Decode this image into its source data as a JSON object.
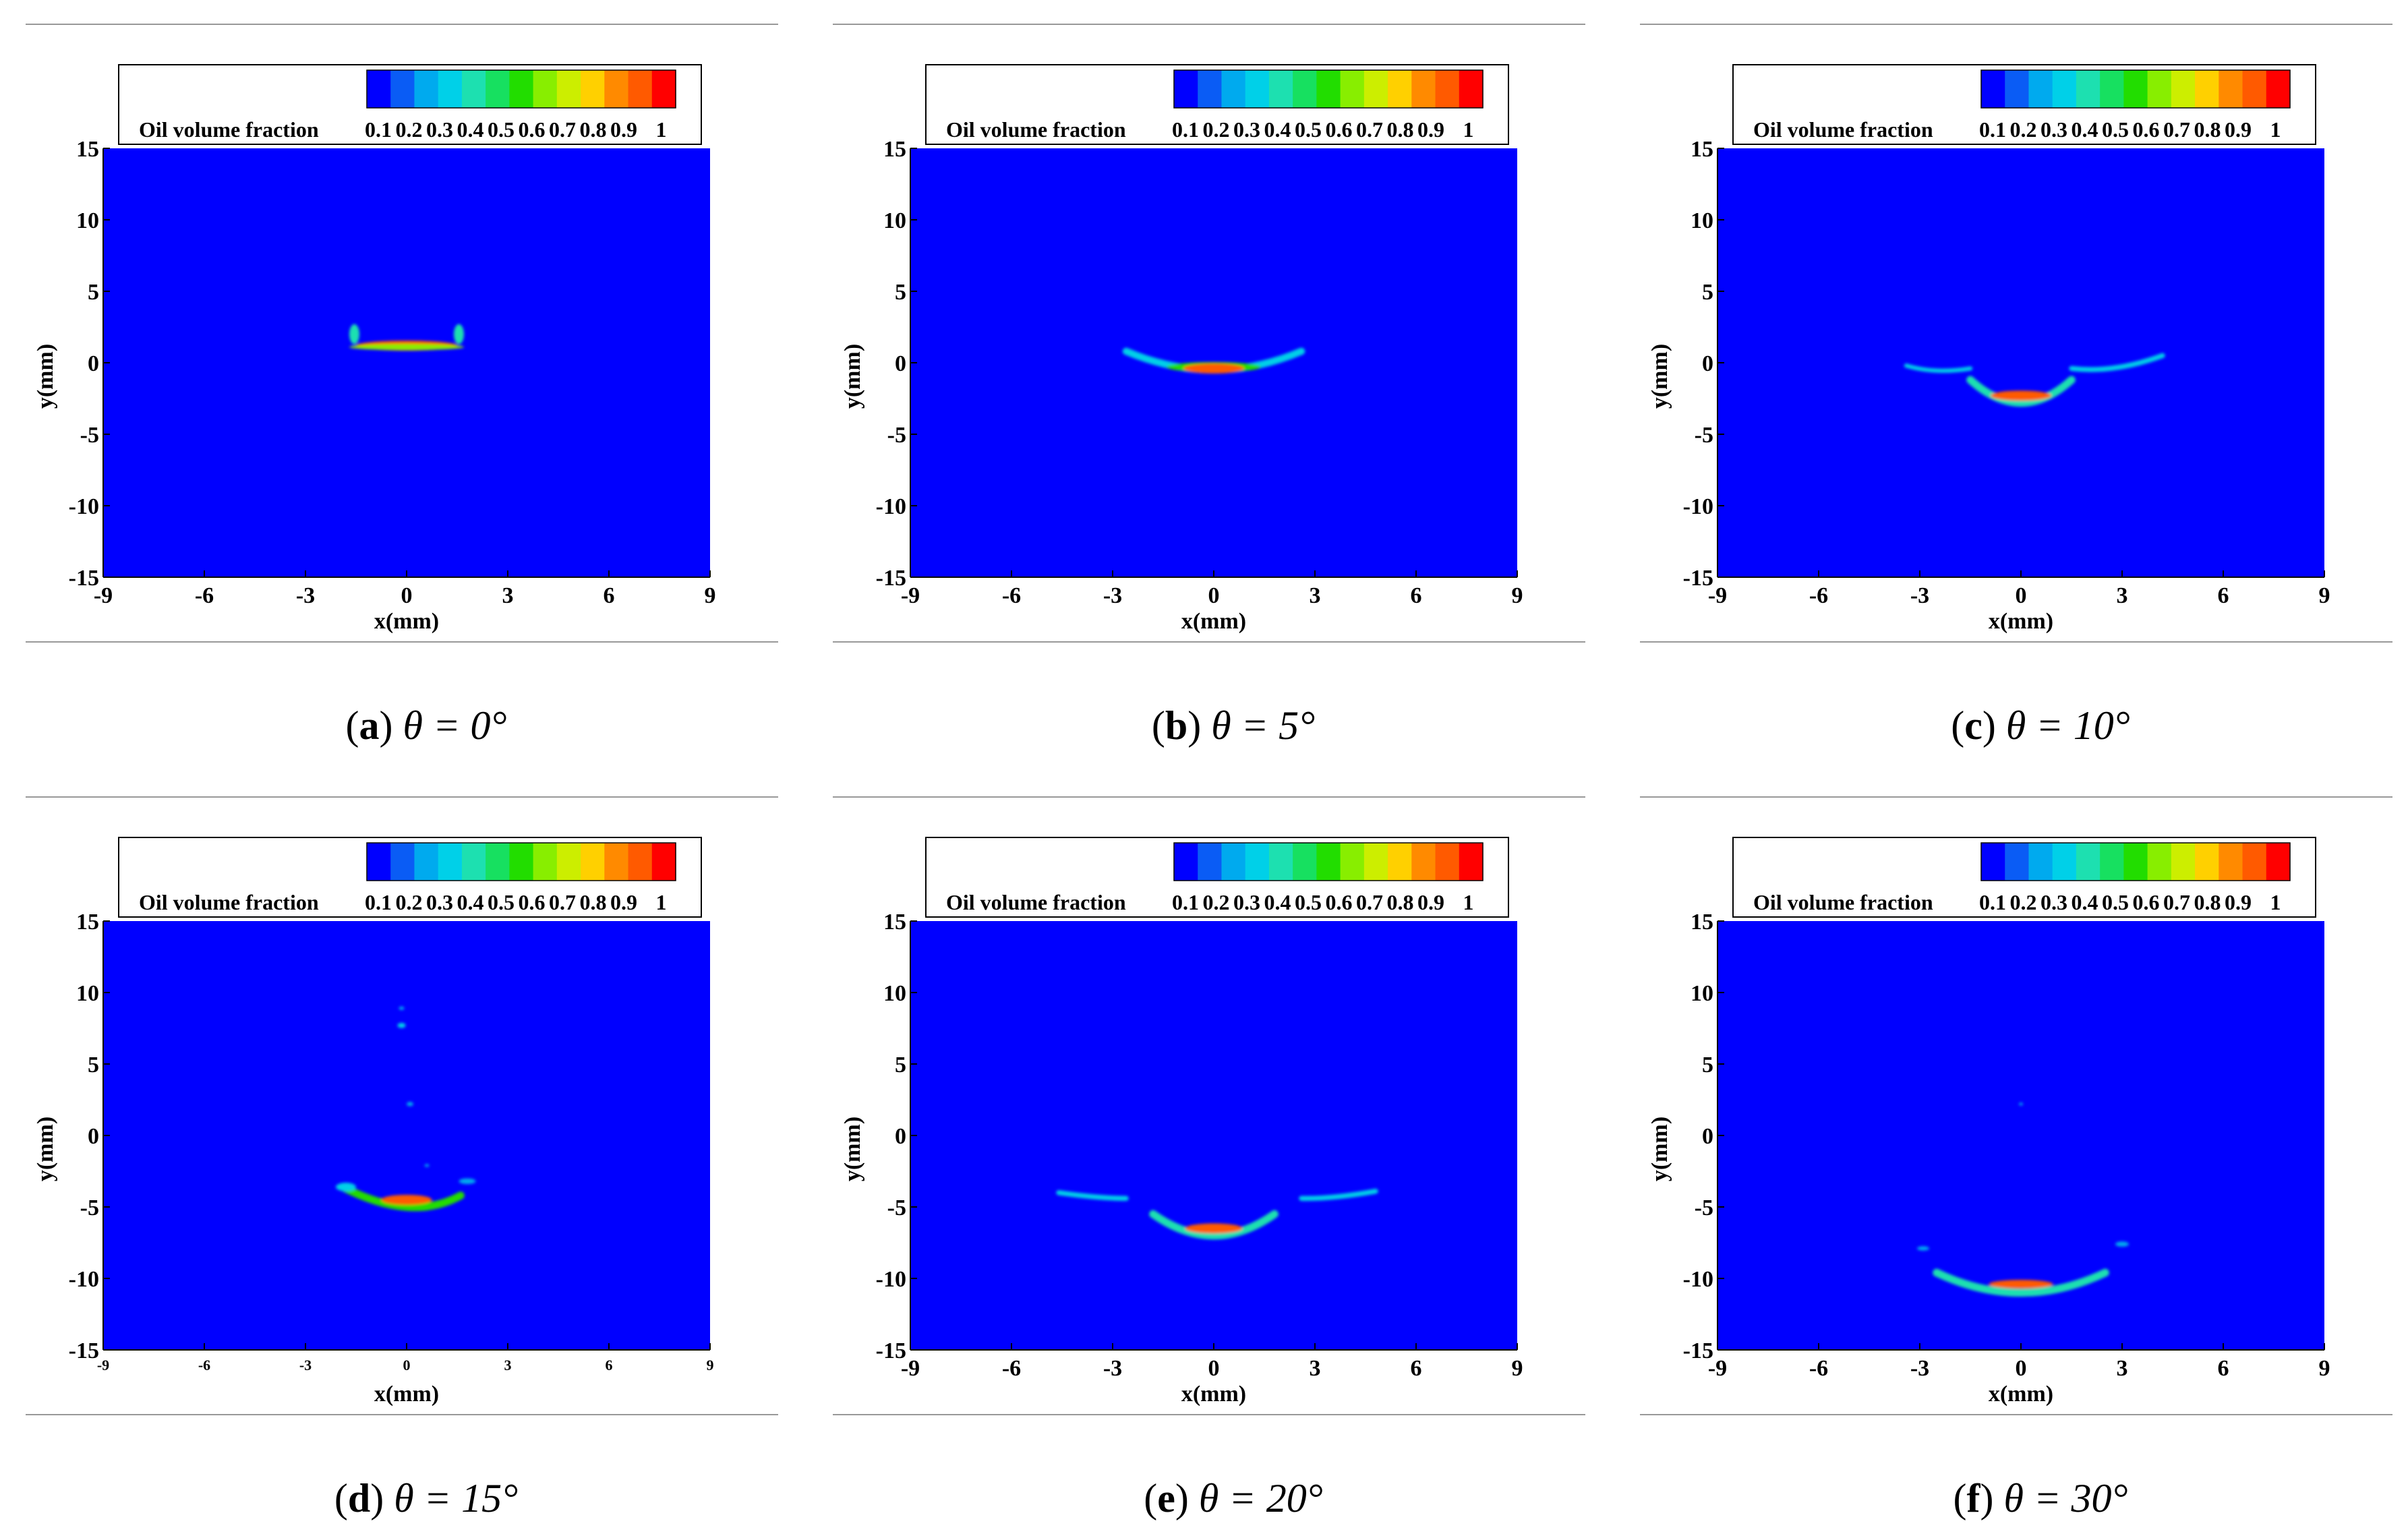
{
  "figure": {
    "colormap": [
      "#0000ff",
      "#0a5cf5",
      "#00aaee",
      "#00d0e8",
      "#1de0b0",
      "#17e060",
      "#22dd00",
      "#88ee00",
      "#ccee00",
      "#ffd000",
      "#ff8a00",
      "#ff5a00",
      "#ff0000"
    ],
    "legend_title": "Oil volume fraction",
    "legend_ticks": [
      "0.1",
      "0.2",
      "0.3",
      "0.4",
      "0.5",
      "0.6",
      "0.7",
      "0.8",
      "0.9",
      "1"
    ],
    "background_color": "#0000ff"
  },
  "chart_data": [
    {
      "type": "heatmap",
      "panel_letter": "a",
      "caption_rest": "θ = 0°",
      "xlabel": "x(mm)",
      "ylabel": "y(mm)",
      "xlim": [
        -9,
        9
      ],
      "ylim": [
        -15,
        15
      ],
      "xticks": [
        "-9",
        "-6",
        "-3",
        "0",
        "3",
        "6",
        "9"
      ],
      "yticks": [
        "15",
        "10",
        "5",
        "0",
        "-5",
        "-10",
        "-15"
      ],
      "small_xticks": false,
      "features": [
        {
          "shape": "band",
          "x": 0,
          "y": 1.2,
          "rx": 1.5,
          "ry": 0.35,
          "color": "#ff5a00"
        },
        {
          "shape": "band",
          "x": 0,
          "y": 1.1,
          "rx": 1.7,
          "ry": 0.22,
          "color": "#88ee00"
        },
        {
          "shape": "blob",
          "x": -1.55,
          "y": 2.0,
          "rx": 0.15,
          "ry": 0.7,
          "color": "#1de0b0"
        },
        {
          "shape": "blob",
          "x": 1.55,
          "y": 2.0,
          "rx": 0.15,
          "ry": 0.7,
          "color": "#1de0b0"
        }
      ]
    },
    {
      "type": "heatmap",
      "panel_letter": "b",
      "caption_rest": "θ = 5°",
      "xlabel": "x(mm)",
      "ylabel": "y(mm)",
      "xlim": [
        -9,
        9
      ],
      "ylim": [
        -15,
        15
      ],
      "xticks": [
        "-9",
        "-6",
        "-3",
        "0",
        "3",
        "6",
        "9"
      ],
      "yticks": [
        "15",
        "10",
        "5",
        "0",
        "-5",
        "-10",
        "-15"
      ],
      "small_xticks": false,
      "features": [
        {
          "shape": "arc",
          "x1": -2.6,
          "y1": 0.8,
          "xm": 0,
          "ym": -0.5,
          "x2": 2.6,
          "y2": 0.8,
          "w": 0.5,
          "color": "#00d0e8"
        },
        {
          "shape": "blob",
          "x": 0,
          "y": -0.3,
          "rx": 1.4,
          "ry": 0.35,
          "color": "#22dd00"
        },
        {
          "shape": "blob",
          "x": 0,
          "y": -0.4,
          "rx": 0.9,
          "ry": 0.35,
          "color": "#ff5a00"
        }
      ]
    },
    {
      "type": "heatmap",
      "panel_letter": "c",
      "caption_rest": "θ = 10°",
      "xlabel": "x(mm)",
      "ylabel": "y(mm)",
      "xlim": [
        -9,
        9
      ],
      "ylim": [
        -15,
        15
      ],
      "xticks": [
        "-9",
        "-6",
        "-3",
        "0",
        "3",
        "6",
        "9"
      ],
      "yticks": [
        "15",
        "10",
        "5",
        "0",
        "-5",
        "-10",
        "-15"
      ],
      "small_xticks": false,
      "features": [
        {
          "shape": "arc",
          "x1": -3.4,
          "y1": -0.2,
          "xm": -2.5,
          "ym": -0.55,
          "x2": -1.5,
          "y2": -0.4,
          "w": 0.3,
          "color": "#00d0e8"
        },
        {
          "shape": "arc",
          "x1": 1.5,
          "y1": -0.4,
          "xm": 2.8,
          "ym": -0.35,
          "x2": 4.2,
          "y2": 0.5,
          "w": 0.35,
          "color": "#00d0e8"
        },
        {
          "shape": "arc",
          "x1": -1.5,
          "y1": -1.2,
          "xm": 0,
          "ym": -2.8,
          "x2": 1.5,
          "y2": -1.2,
          "w": 0.55,
          "color": "#1de0b0"
        },
        {
          "shape": "blob",
          "x": 0,
          "y": -2.3,
          "rx": 0.9,
          "ry": 0.35,
          "color": "#ff5a00"
        }
      ]
    },
    {
      "type": "heatmap",
      "panel_letter": "d",
      "caption_rest": "θ = 15°",
      "xlabel": "x(mm)",
      "ylabel": "y(mm)",
      "xlim": [
        -9,
        9
      ],
      "ylim": [
        -15,
        15
      ],
      "xticks": [
        "-9",
        "-6",
        "-3",
        "0",
        "3",
        "6",
        "9"
      ],
      "yticks": [
        "15",
        "10",
        "5",
        "0",
        "-5",
        "-10",
        "-15"
      ],
      "small_xticks": true,
      "features": [
        {
          "shape": "arc",
          "x1": -1.9,
          "y1": -3.6,
          "xm": 0,
          "ym": -5.0,
          "x2": 1.6,
          "y2": -4.2,
          "w": 0.55,
          "color": "#22dd00"
        },
        {
          "shape": "blob",
          "x": 0,
          "y": -4.5,
          "rx": 0.75,
          "ry": 0.35,
          "color": "#ff5a00"
        },
        {
          "shape": "blob",
          "x": -1.8,
          "y": -3.6,
          "rx": 0.3,
          "ry": 0.3,
          "color": "#00d0e8"
        },
        {
          "shape": "blob",
          "x": 1.8,
          "y": -3.2,
          "rx": 0.25,
          "ry": 0.2,
          "color": "#00aaee"
        },
        {
          "shape": "blob",
          "x": -0.15,
          "y": 7.7,
          "rx": 0.12,
          "ry": 0.18,
          "color": "#00d0e8"
        },
        {
          "shape": "blob",
          "x": -0.15,
          "y": 8.9,
          "rx": 0.08,
          "ry": 0.12,
          "color": "#00aaee"
        },
        {
          "shape": "blob",
          "x": 0.1,
          "y": 2.2,
          "rx": 0.1,
          "ry": 0.15,
          "color": "#00aaee"
        },
        {
          "shape": "blob",
          "x": 0.6,
          "y": -2.1,
          "rx": 0.07,
          "ry": 0.1,
          "color": "#00aaee"
        }
      ]
    },
    {
      "type": "heatmap",
      "panel_letter": "e",
      "caption_rest": "θ = 20°",
      "xlabel": "x(mm)",
      "ylabel": "y(mm)",
      "xlim": [
        -9,
        9
      ],
      "ylim": [
        -15,
        15
      ],
      "xticks": [
        "-9",
        "-6",
        "-3",
        "0",
        "3",
        "6",
        "9"
      ],
      "yticks": [
        "15",
        "10",
        "5",
        "0",
        "-5",
        "-10",
        "-15"
      ],
      "small_xticks": false,
      "features": [
        {
          "shape": "arc",
          "x1": -4.6,
          "y1": -4.0,
          "xm": -3.5,
          "ym": -4.3,
          "x2": -2.6,
          "y2": -4.4,
          "w": 0.35,
          "color": "#00d0e8"
        },
        {
          "shape": "arc",
          "x1": 2.6,
          "y1": -4.4,
          "xm": 3.6,
          "ym": -4.3,
          "x2": 4.8,
          "y2": -3.9,
          "w": 0.35,
          "color": "#00d0e8"
        },
        {
          "shape": "arc",
          "x1": -1.8,
          "y1": -5.5,
          "xm": 0,
          "ym": -7.0,
          "x2": 1.8,
          "y2": -5.5,
          "w": 0.55,
          "color": "#1de0b0"
        },
        {
          "shape": "blob",
          "x": 0,
          "y": -6.5,
          "rx": 0.85,
          "ry": 0.35,
          "color": "#ff5a00"
        }
      ]
    },
    {
      "type": "heatmap",
      "panel_letter": "f",
      "caption_rest": "θ = 30°",
      "xlabel": "x(mm)",
      "ylabel": "y(mm)",
      "xlim": [
        -9,
        9
      ],
      "ylim": [
        -15,
        15
      ],
      "xticks": [
        "-9",
        "-6",
        "-3",
        "0",
        "3",
        "6",
        "9"
      ],
      "yticks": [
        "15",
        "10",
        "5",
        "0",
        "-5",
        "-10",
        "-15"
      ],
      "small_xticks": false,
      "features": [
        {
          "shape": "arc",
          "x1": -2.5,
          "y1": -9.6,
          "xm": 0,
          "ym": -11.0,
          "x2": 2.5,
          "y2": -9.6,
          "w": 0.55,
          "color": "#1de0b0"
        },
        {
          "shape": "blob",
          "x": 0,
          "y": -10.4,
          "rx": 0.95,
          "ry": 0.3,
          "color": "#ff5a00"
        },
        {
          "shape": "blob",
          "x": -2.9,
          "y": -7.9,
          "rx": 0.18,
          "ry": 0.15,
          "color": "#00aaee"
        },
        {
          "shape": "blob",
          "x": 3.0,
          "y": -7.6,
          "rx": 0.2,
          "ry": 0.18,
          "color": "#00aaee"
        },
        {
          "shape": "blob",
          "x": 0,
          "y": 2.2,
          "rx": 0.06,
          "ry": 0.1,
          "color": "#00aaee"
        }
      ]
    }
  ]
}
